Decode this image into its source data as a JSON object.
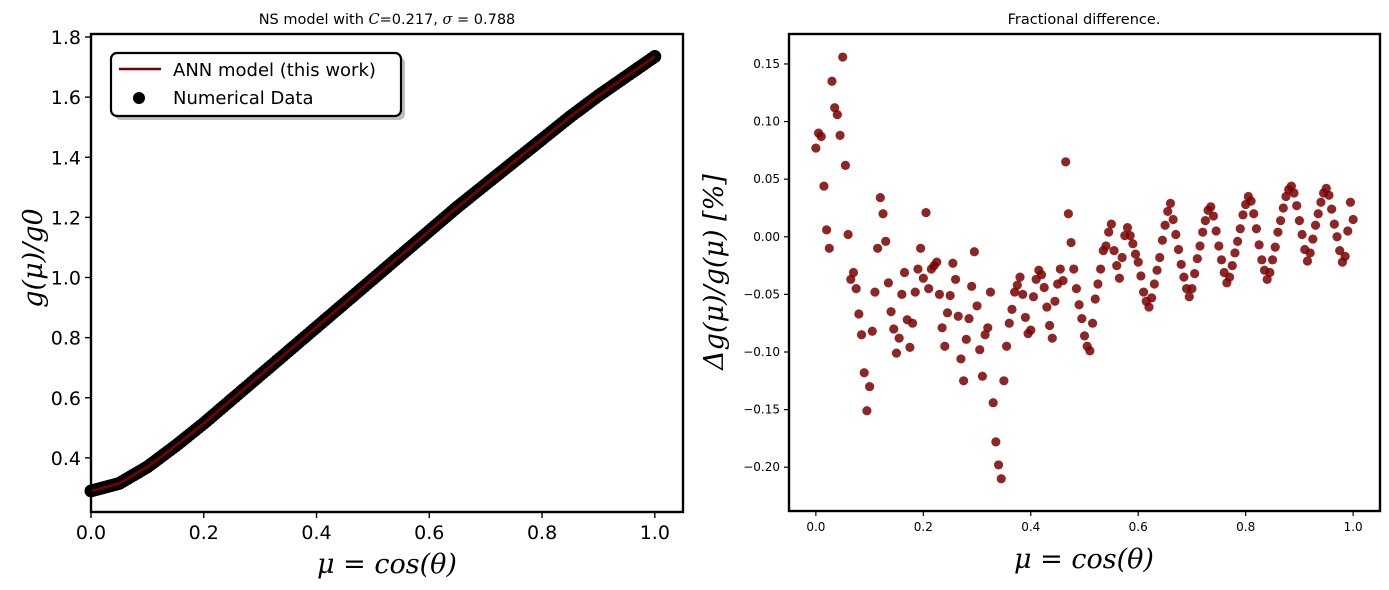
{
  "chart_data": [
    {
      "type": "line",
      "title": "NS model with C=0.217, σ = 0.788",
      "title_parts": {
        "prefix": "NS model with ",
        "c_symbol": "C",
        "c_value": "=0.217, ",
        "sigma_symbol": "σ",
        "sigma_value": " = 0.788"
      },
      "xlabel": "μ = cos(θ)",
      "ylabel": "g(μ)/g0",
      "xlim": [
        0.0,
        1.05
      ],
      "ylim": [
        0.22,
        1.81
      ],
      "xticks": [
        "0.0",
        "0.2",
        "0.4",
        "0.6",
        "0.8",
        "1.0"
      ],
      "yticks": [
        "0.4",
        "0.6",
        "0.8",
        "1.0",
        "1.2",
        "1.4",
        "1.6",
        "1.8"
      ],
      "grid": false,
      "legend_position": "top-left",
      "legend": [
        "ANN model (this work)",
        "Numerical Data"
      ],
      "series": [
        {
          "name": "ANN model (this work)",
          "style": "line",
          "color": "#7a0000"
        },
        {
          "name": "Numerical Data",
          "style": "scatter",
          "color": "#000000"
        }
      ],
      "x": [
        0.0,
        0.05,
        0.1,
        0.15,
        0.2,
        0.25,
        0.3,
        0.35,
        0.4,
        0.45,
        0.5,
        0.55,
        0.6,
        0.65,
        0.7,
        0.75,
        0.8,
        0.85,
        0.9,
        0.95,
        1.0
      ],
      "y": [
        0.29,
        0.315,
        0.37,
        0.44,
        0.515,
        0.595,
        0.675,
        0.755,
        0.835,
        0.915,
        0.995,
        1.075,
        1.155,
        1.235,
        1.31,
        1.385,
        1.46,
        1.535,
        1.605,
        1.67,
        1.735
      ]
    },
    {
      "type": "scatter",
      "title": "Fractional difference.",
      "xlabel": "μ = cos(θ)",
      "ylabel": "Δg(μ)/g(μ) [%]",
      "xlim": [
        -0.05,
        1.05
      ],
      "ylim": [
        -0.238,
        0.176
      ],
      "xticks": [
        "0.0",
        "0.2",
        "0.4",
        "0.6",
        "0.8",
        "1.0"
      ],
      "yticks": [
        "0.15",
        "0.10",
        "0.05",
        "0.00",
        "−0.05",
        "−0.10",
        "−0.15",
        "−0.20"
      ],
      "grid": false,
      "color": "#7a0000",
      "series": [
        {
          "x": [
            0.0,
            0.005,
            0.01,
            0.015,
            0.02,
            0.025,
            0.03,
            0.035,
            0.04,
            0.045,
            0.05,
            0.055,
            0.06,
            0.065,
            0.07,
            0.075,
            0.08,
            0.085,
            0.09,
            0.095,
            0.1,
            0.105,
            0.11,
            0.115,
            0.12,
            0.125,
            0.13,
            0.135,
            0.14,
            0.145,
            0.15,
            0.155,
            0.16,
            0.165,
            0.17,
            0.175,
            0.18,
            0.185,
            0.19,
            0.195,
            0.2,
            0.205,
            0.21,
            0.215,
            0.22,
            0.225,
            0.23,
            0.235,
            0.24,
            0.245,
            0.25,
            0.255,
            0.26,
            0.265,
            0.27,
            0.275,
            0.28,
            0.285,
            0.29,
            0.295,
            0.3,
            0.305,
            0.31,
            0.315,
            0.32,
            0.325,
            0.33,
            0.335,
            0.34,
            0.345,
            0.35,
            0.355,
            0.36,
            0.365,
            0.37,
            0.375,
            0.38,
            0.385,
            0.39,
            0.395,
            0.4,
            0.405,
            0.41,
            0.415,
            0.42,
            0.425,
            0.43,
            0.435,
            0.44,
            0.445,
            0.45,
            0.455,
            0.46,
            0.465,
            0.47,
            0.475,
            0.48,
            0.485,
            0.49,
            0.495,
            0.5,
            0.505,
            0.51,
            0.515,
            0.52,
            0.525,
            0.53,
            0.535,
            0.54,
            0.545,
            0.55,
            0.555,
            0.56,
            0.565,
            0.57,
            0.575,
            0.58,
            0.585,
            0.59,
            0.595,
            0.6,
            0.605,
            0.61,
            0.615,
            0.62,
            0.625,
            0.63,
            0.635,
            0.64,
            0.645,
            0.65,
            0.655,
            0.66,
            0.665,
            0.67,
            0.675,
            0.68,
            0.685,
            0.69,
            0.695,
            0.7,
            0.705,
            0.71,
            0.715,
            0.72,
            0.725,
            0.73,
            0.735,
            0.74,
            0.745,
            0.75,
            0.755,
            0.76,
            0.765,
            0.77,
            0.775,
            0.78,
            0.785,
            0.79,
            0.795,
            0.8,
            0.805,
            0.81,
            0.815,
            0.82,
            0.825,
            0.83,
            0.835,
            0.84,
            0.845,
            0.85,
            0.855,
            0.86,
            0.865,
            0.87,
            0.875,
            0.88,
            0.885,
            0.89,
            0.895,
            0.9,
            0.905,
            0.91,
            0.915,
            0.92,
            0.925,
            0.93,
            0.935,
            0.94,
            0.945,
            0.95,
            0.955,
            0.96,
            0.965,
            0.97,
            0.975,
            0.98,
            0.985,
            0.99,
            0.995,
            1.0
          ],
          "y": [
            0.077,
            0.09,
            0.087,
            0.044,
            0.006,
            -0.01,
            0.135,
            0.112,
            0.106,
            0.088,
            0.156,
            0.062,
            0.002,
            -0.037,
            -0.031,
            -0.045,
            -0.067,
            -0.085,
            -0.118,
            -0.151,
            -0.13,
            -0.082,
            -0.048,
            -0.01,
            0.034,
            0.02,
            -0.004,
            -0.04,
            -0.065,
            -0.08,
            -0.101,
            -0.088,
            -0.05,
            -0.031,
            -0.072,
            -0.096,
            -0.075,
            -0.048,
            -0.028,
            -0.01,
            -0.036,
            0.021,
            -0.045,
            -0.028,
            -0.025,
            -0.022,
            -0.05,
            -0.079,
            -0.095,
            -0.066,
            -0.051,
            -0.023,
            -0.037,
            -0.069,
            -0.106,
            -0.125,
            -0.089,
            -0.071,
            -0.043,
            -0.013,
            -0.06,
            -0.098,
            -0.121,
            -0.085,
            -0.079,
            -0.048,
            -0.144,
            -0.178,
            -0.198,
            -0.21,
            -0.125,
            -0.095,
            -0.075,
            -0.063,
            -0.048,
            -0.042,
            -0.035,
            -0.05,
            -0.07,
            -0.084,
            -0.081,
            -0.052,
            -0.037,
            -0.029,
            -0.033,
            -0.044,
            -0.061,
            -0.077,
            -0.088,
            -0.056,
            -0.041,
            -0.028,
            -0.038,
            0.065,
            0.02,
            -0.005,
            -0.028,
            -0.045,
            -0.059,
            -0.071,
            -0.086,
            -0.095,
            -0.099,
            -0.075,
            -0.054,
            -0.041,
            -0.028,
            -0.012,
            -0.008,
            0.004,
            0.011,
            -0.012,
            -0.025,
            -0.036,
            -0.018,
            0.001,
            0.008,
            0.001,
            -0.006,
            -0.015,
            -0.022,
            -0.034,
            -0.048,
            -0.056,
            -0.061,
            -0.053,
            -0.041,
            -0.029,
            -0.018,
            -0.003,
            0.01,
            0.022,
            0.029,
            0.015,
            0.002,
            -0.011,
            -0.024,
            -0.035,
            -0.045,
            -0.052,
            -0.045,
            -0.032,
            -0.019,
            -0.008,
            0.004,
            0.014,
            0.023,
            0.026,
            0.018,
            0.005,
            -0.008,
            -0.02,
            -0.031,
            -0.04,
            -0.035,
            -0.025,
            -0.014,
            -0.004,
            0.007,
            0.019,
            0.028,
            0.035,
            0.031,
            0.02,
            0.007,
            -0.007,
            -0.02,
            -0.029,
            -0.037,
            -0.031,
            -0.02,
            -0.009,
            0.004,
            0.014,
            0.025,
            0.035,
            0.041,
            0.044,
            0.038,
            0.027,
            0.014,
            0.002,
            -0.011,
            -0.021,
            -0.014,
            -0.002,
            0.01,
            0.02,
            0.03,
            0.038,
            0.042,
            0.036,
            0.024,
            0.011,
            0.0,
            -0.012,
            -0.022,
            -0.017,
            0.005,
            0.03,
            0.015
          ]
        }
      ]
    }
  ]
}
